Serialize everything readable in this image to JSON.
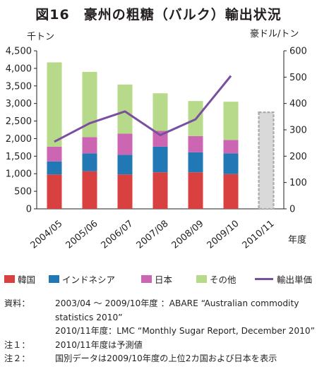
{
  "figure": {
    "title": "図16　豪州の粗糖（バルク）輸出状況"
  },
  "chart_data": {
    "type": "bar",
    "stacked": true,
    "categories": [
      "2004/05",
      "2005/06",
      "2006/07",
      "2007/08",
      "2008/09",
      "2009/10",
      "2010/11"
    ],
    "series": [
      {
        "name": "韓国",
        "color": "#d94040",
        "values": [
          980,
          1070,
          980,
          1040,
          1040,
          990,
          null
        ]
      },
      {
        "name": "インドネシア",
        "color": "#2278b5",
        "values": [
          370,
          510,
          560,
          730,
          570,
          590,
          null
        ]
      },
      {
        "name": "日本",
        "color": "#cc66b3",
        "values": [
          420,
          460,
          600,
          450,
          460,
          380,
          null
        ]
      },
      {
        "name": "その他",
        "color": "#b7d98a",
        "values": [
          2400,
          1860,
          1400,
          1070,
          1000,
          1090,
          null
        ]
      }
    ],
    "forecast": {
      "category": "2010/11",
      "total": 2750,
      "style": "dashed-outline",
      "color": "#aaaaaa"
    },
    "line_series": {
      "name": "輸出単価",
      "color": "#7b4fa0",
      "axis": "right",
      "values": [
        255,
        325,
        370,
        280,
        340,
        505,
        null
      ]
    },
    "left_axis": {
      "label": "千トン",
      "ylim": [
        0,
        4500
      ],
      "ticks": [
        "0",
        "500",
        "1,000",
        "1,500",
        "2,000",
        "2,500",
        "3,000",
        "3,500",
        "4,000",
        "4,500"
      ]
    },
    "right_axis": {
      "label": "豪ドル/トン",
      "ylim": [
        0,
        600
      ],
      "ticks": [
        "0",
        "100",
        "200",
        "300",
        "400",
        "500",
        "600"
      ]
    },
    "xlabel": "年度",
    "legend_position": "bottom"
  },
  "notes": {
    "source_label": "資料：",
    "source_line1": "2003/04 ～ 2009/10年度 ：ABARE “Australian commodity",
    "source_line2": "statistics 2010”",
    "source_line3": "2010/11年度：LMC “Monthly Sugar Report, December 2010”",
    "note1_label": "注１：",
    "note1": "2010/11年度は予測値",
    "note2_label": "注２：",
    "note2": "国別データは2009/10年度の上位2カ国および日本を表示"
  }
}
